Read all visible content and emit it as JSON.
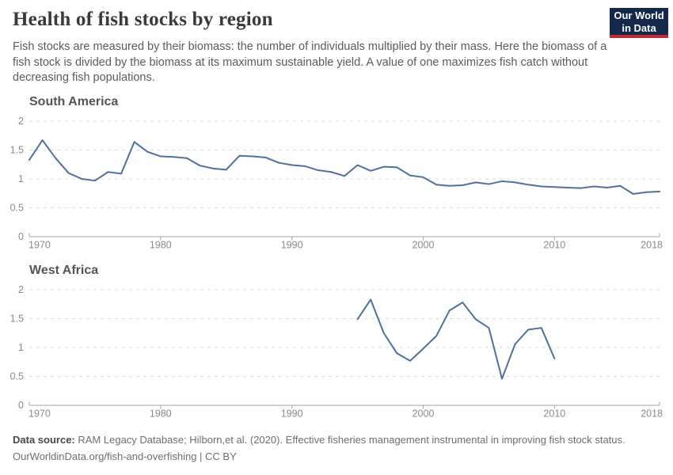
{
  "header": {
    "title": "Health of fish stocks by region",
    "subtitle": "Fish stocks are measured by their biomass: the number of individuals multiplied by their mass. Here the biomass of a fish stock is divided by the biomass at its maximum sustainable yield. A value of one maximizes fish catch without decreasing fish populations.",
    "logo": {
      "line1": "Our World",
      "line2": "in Data",
      "bg_color": "#12294B",
      "accent_color": "#C5292E"
    }
  },
  "colors": {
    "grid": "#dbdbdb",
    "axis": "#a6a6a6",
    "tick_label": "#8a8a8a"
  },
  "chart_data": [
    {
      "type": "line",
      "title": "South America",
      "x": [
        1970,
        1971,
        1972,
        1973,
        1974,
        1975,
        1976,
        1977,
        1978,
        1979,
        1980,
        1981,
        1982,
        1983,
        1984,
        1985,
        1986,
        1987,
        1988,
        1989,
        1990,
        1991,
        1992,
        1993,
        1994,
        1995,
        1996,
        1997,
        1998,
        1999,
        2000,
        2001,
        2002,
        2003,
        2004,
        2005,
        2006,
        2007,
        2008,
        2009,
        2010,
        2011,
        2012,
        2013,
        2014,
        2015,
        2016,
        2017,
        2018
      ],
      "values": [
        1.33,
        1.67,
        1.36,
        1.1,
        1.0,
        0.97,
        1.12,
        1.09,
        1.64,
        1.47,
        1.39,
        1.38,
        1.36,
        1.23,
        1.18,
        1.16,
        1.4,
        1.39,
        1.37,
        1.28,
        1.24,
        1.22,
        1.15,
        1.12,
        1.05,
        1.24,
        1.14,
        1.21,
        1.2,
        1.06,
        1.03,
        0.9,
        0.88,
        0.89,
        0.94,
        0.91,
        0.96,
        0.94,
        0.9,
        0.87,
        0.86,
        0.85,
        0.84,
        0.87,
        0.85,
        0.88,
        0.74,
        0.77,
        0.78
      ],
      "xlim": [
        1970,
        2018
      ],
      "ylim": [
        0,
        2
      ],
      "yticks": [
        0,
        0.5,
        1,
        1.5,
        2
      ],
      "xticks": [
        1970,
        1980,
        1990,
        2000,
        2010,
        2018
      ],
      "grid": "dashed-horizontal",
      "legend": "none",
      "line_color": "#4d6fa7"
    },
    {
      "type": "line",
      "title": "West Africa",
      "x": [
        1995,
        1996,
        1997,
        1998,
        1999,
        2000,
        2001,
        2002,
        2003,
        2004,
        2005,
        2006,
        2007,
        2008,
        2009,
        2010
      ],
      "values": [
        1.49,
        1.83,
        1.25,
        0.9,
        0.77,
        0.98,
        1.2,
        1.64,
        1.78,
        1.49,
        1.34,
        0.46,
        1.06,
        1.31,
        1.34,
        0.81
      ],
      "xlim": [
        1970,
        2018
      ],
      "ylim": [
        0,
        2
      ],
      "yticks": [
        0,
        0.5,
        1,
        1.5,
        2
      ],
      "xticks": [
        1970,
        1980,
        1990,
        2000,
        2010,
        2018
      ],
      "grid": "dashed-horizontal",
      "legend": "none",
      "line_color": "#4d6fa7"
    }
  ],
  "footer": {
    "datasource_label": "Data source:",
    "datasource_text": "RAM Legacy Database; Hilborn,et al. (2020). Effective fisheries management instrumental in improving fish stock status.",
    "link_text": "OurWorldinData.org/fish-and-overfishing | CC BY"
  }
}
